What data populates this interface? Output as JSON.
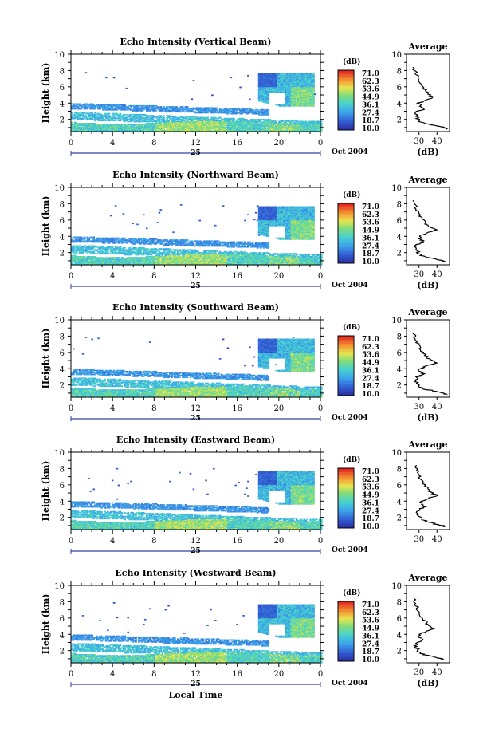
{
  "chart_data": [
    {
      "type": "heatmap",
      "title": "Echo Intensity (Vertical Beam)",
      "ylabel": "Height (km)",
      "xlabel": "",
      "x_ticks": [
        "0",
        "4",
        "8",
        "12",
        "16",
        "20",
        "0"
      ],
      "y_ticks": [
        "2",
        "4",
        "6",
        "8",
        "10"
      ],
      "ylim": [
        0.5,
        10
      ],
      "xlim": [
        0,
        24
      ],
      "day_label": "25",
      "month_label": "Oct 2004",
      "colorbar": {
        "unit": "(dB)",
        "ticks": [
          "71.0",
          "62.3",
          "53.6",
          "44.9",
          "36.1",
          "27.4",
          "18.7",
          "10.0"
        ],
        "range": [
          10.0,
          71.0
        ]
      },
      "profile": {
        "title": "Average",
        "xlabel": "(dB)",
        "x_ticks": [
          "30",
          "40"
        ],
        "xlim": [
          23,
          47
        ],
        "y_ticks": [
          "2",
          "4",
          "6",
          "8",
          "10"
        ],
        "points": [
          [
            45,
            0.8
          ],
          [
            44,
            1.0
          ],
          [
            40,
            1.2
          ],
          [
            33,
            1.5
          ],
          [
            30,
            1.8
          ],
          [
            29,
            2.2
          ],
          [
            28,
            2.6
          ],
          [
            29,
            3.0
          ],
          [
            33,
            3.3
          ],
          [
            31,
            3.6
          ],
          [
            30,
            4.0
          ],
          [
            33,
            4.3
          ],
          [
            38,
            4.7
          ],
          [
            35,
            5.1
          ],
          [
            34,
            5.5
          ],
          [
            32,
            6.0
          ],
          [
            30,
            6.6
          ],
          [
            29,
            7.2
          ],
          [
            28,
            7.8
          ],
          [
            27,
            8.4
          ]
        ]
      }
    },
    {
      "type": "heatmap",
      "title": "Echo Intensity (Northward Beam)",
      "ylabel": "Height (km)",
      "xlabel": "",
      "x_ticks": [
        "0",
        "4",
        "8",
        "12",
        "16",
        "20",
        "0"
      ],
      "y_ticks": [
        "2",
        "4",
        "6",
        "8",
        "10"
      ],
      "ylim": [
        0.5,
        10
      ],
      "xlim": [
        0,
        24
      ],
      "day_label": "25",
      "month_label": "Oct 2004",
      "colorbar": {
        "unit": "(dB)",
        "ticks": [
          "71.0",
          "62.3",
          "53.6",
          "44.9",
          "36.1",
          "27.4",
          "18.7",
          "10.0"
        ],
        "range": [
          10.0,
          71.0
        ]
      },
      "profile": {
        "title": "Average",
        "xlabel": "(dB)",
        "x_ticks": [
          "30",
          "40"
        ],
        "xlim": [
          23,
          47
        ],
        "y_ticks": [
          "2",
          "4",
          "6",
          "8",
          "10"
        ],
        "points": [
          [
            44,
            0.8
          ],
          [
            43,
            1.0
          ],
          [
            39,
            1.2
          ],
          [
            33,
            1.5
          ],
          [
            30,
            1.8
          ],
          [
            29,
            2.2
          ],
          [
            28,
            2.6
          ],
          [
            29,
            3.0
          ],
          [
            33,
            3.3
          ],
          [
            31,
            3.6
          ],
          [
            30,
            4.0
          ],
          [
            34,
            4.4
          ],
          [
            39,
            4.8
          ],
          [
            35,
            5.2
          ],
          [
            34,
            5.6
          ],
          [
            32,
            6.1
          ],
          [
            30,
            6.6
          ],
          [
            29,
            7.2
          ],
          [
            28,
            7.8
          ],
          [
            27,
            8.4
          ]
        ]
      }
    },
    {
      "type": "heatmap",
      "title": "Echo Intensity (Southward Beam)",
      "ylabel": "Height (km)",
      "xlabel": "",
      "x_ticks": [
        "0",
        "4",
        "8",
        "12",
        "16",
        "20",
        "0"
      ],
      "y_ticks": [
        "2",
        "4",
        "6",
        "8",
        "10"
      ],
      "ylim": [
        0.5,
        10
      ],
      "xlim": [
        0,
        24
      ],
      "day_label": "25",
      "month_label": "Oct 2004",
      "colorbar": {
        "unit": "(dB)",
        "ticks": [
          "71.0",
          "62.3",
          "53.6",
          "44.9",
          "36.1",
          "27.4",
          "18.7",
          "10.0"
        ],
        "range": [
          10.0,
          71.0
        ]
      },
      "profile": {
        "title": "Average",
        "xlabel": "(dB)",
        "x_ticks": [
          "30",
          "40"
        ],
        "xlim": [
          23,
          47
        ],
        "y_ticks": [
          "2",
          "4",
          "6",
          "8",
          "10"
        ],
        "points": [
          [
            45,
            0.8
          ],
          [
            44,
            1.0
          ],
          [
            40,
            1.2
          ],
          [
            33,
            1.5
          ],
          [
            30,
            1.8
          ],
          [
            29,
            2.2
          ],
          [
            28,
            2.6
          ],
          [
            29,
            3.0
          ],
          [
            33,
            3.3
          ],
          [
            31,
            3.6
          ],
          [
            30,
            4.0
          ],
          [
            34,
            4.3
          ],
          [
            40,
            4.7
          ],
          [
            36,
            5.1
          ],
          [
            34,
            5.5
          ],
          [
            32,
            6.0
          ],
          [
            30,
            6.6
          ],
          [
            29,
            7.2
          ],
          [
            28,
            7.8
          ],
          [
            27,
            8.4
          ]
        ]
      }
    },
    {
      "type": "heatmap",
      "title": "Echo Intensity (Eastward Beam)",
      "ylabel": "Height (km)",
      "xlabel": "",
      "x_ticks": [
        "0",
        "4",
        "8",
        "12",
        "16",
        "20",
        "0"
      ],
      "y_ticks": [
        "2",
        "4",
        "6",
        "8",
        "10"
      ],
      "ylim": [
        0.5,
        10
      ],
      "xlim": [
        0,
        24
      ],
      "day_label": "25",
      "month_label": "Oct 2004",
      "colorbar": {
        "unit": "(dB)",
        "ticks": [
          "71.0",
          "62.3",
          "53.6",
          "44.9",
          "36.1",
          "27.4",
          "18.7",
          "10.0"
        ],
        "range": [
          10.0,
          71.0
        ]
      },
      "profile": {
        "title": "Average",
        "xlabel": "",
        "x_ticks": [
          "30",
          "40"
        ],
        "xlim": [
          23,
          47
        ],
        "y_ticks": [
          "2",
          "4",
          "6",
          "8",
          "10"
        ],
        "points": [
          [
            44,
            0.8
          ],
          [
            43,
            1.0
          ],
          [
            39,
            1.2
          ],
          [
            34,
            1.5
          ],
          [
            31,
            1.8
          ],
          [
            30,
            2.2
          ],
          [
            29,
            2.6
          ],
          [
            30,
            3.0
          ],
          [
            33,
            3.3
          ],
          [
            31,
            3.6
          ],
          [
            31,
            4.0
          ],
          [
            35,
            4.3
          ],
          [
            40,
            4.7
          ],
          [
            36,
            5.1
          ],
          [
            35,
            5.5
          ],
          [
            33,
            6.0
          ],
          [
            31,
            6.6
          ],
          [
            30,
            7.2
          ],
          [
            29,
            7.8
          ],
          [
            28,
            8.4
          ]
        ]
      }
    },
    {
      "type": "heatmap",
      "title": "Echo Intensity (Westward Beam)",
      "ylabel": "Height (km)",
      "xlabel": "Local Time",
      "x_ticks": [
        "0",
        "4",
        "8",
        "12",
        "16",
        "20",
        "0"
      ],
      "y_ticks": [
        "2",
        "4",
        "6",
        "8",
        "10"
      ],
      "ylim": [
        0.5,
        10
      ],
      "xlim": [
        0,
        24
      ],
      "day_label": "25",
      "month_label": "Oct 2004",
      "colorbar": {
        "unit": "(dB)",
        "ticks": [
          "71.0",
          "62.3",
          "53.6",
          "44.9",
          "36.1",
          "27.4",
          "18.7",
          "10.0"
        ],
        "range": [
          10.0,
          71.0
        ]
      },
      "profile": {
        "title": "Average",
        "xlabel": "(dB)",
        "x_ticks": [
          "30",
          "40"
        ],
        "xlim": [
          23,
          47
        ],
        "y_ticks": [
          "2",
          "4",
          "6",
          "8",
          "10"
        ],
        "points": [
          [
            44,
            0.8
          ],
          [
            43,
            1.0
          ],
          [
            39,
            1.2
          ],
          [
            33,
            1.5
          ],
          [
            30,
            1.8
          ],
          [
            29,
            2.2
          ],
          [
            28,
            2.6
          ],
          [
            29,
            3.0
          ],
          [
            32,
            3.3
          ],
          [
            30,
            3.6
          ],
          [
            30,
            4.0
          ],
          [
            33,
            4.3
          ],
          [
            38,
            4.7
          ],
          [
            35,
            5.1
          ],
          [
            34,
            5.5
          ],
          [
            32,
            6.0
          ],
          [
            30,
            6.6
          ],
          [
            29,
            7.2
          ],
          [
            28,
            7.8
          ],
          [
            27,
            8.4
          ]
        ]
      }
    }
  ]
}
